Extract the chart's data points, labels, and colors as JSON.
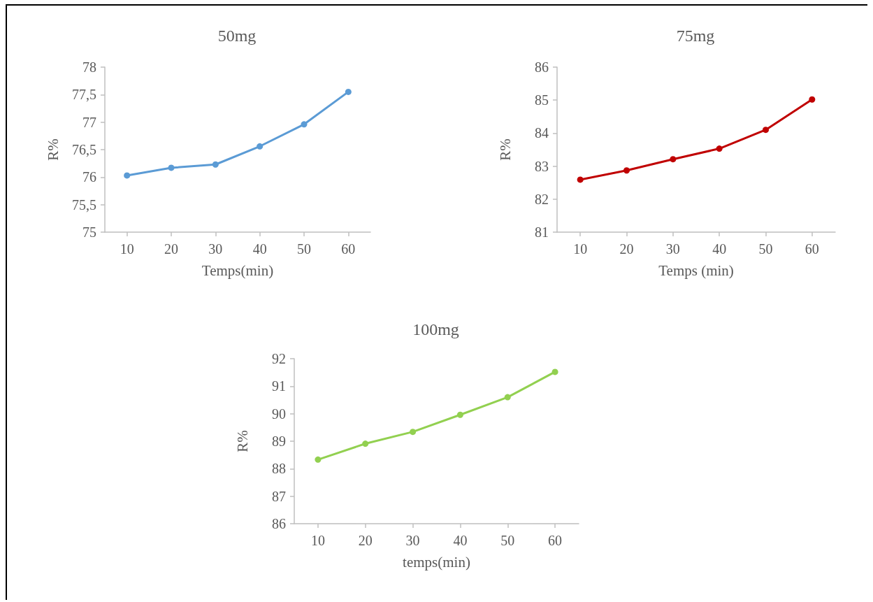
{
  "chart_data": [
    {
      "type": "line",
      "title": "50mg",
      "xlabel": "Temps(min)",
      "ylabel": "R%",
      "x": [
        10,
        20,
        30,
        40,
        50,
        60
      ],
      "series": [
        {
          "color": "#5b9bd5",
          "values": [
            76.03,
            76.17,
            76.23,
            76.56,
            76.96,
            77.55
          ]
        }
      ],
      "xlim": [
        5,
        65
      ],
      "xticks": [
        10,
        20,
        30,
        40,
        50,
        60
      ],
      "ylim": [
        75,
        78
      ],
      "yticks": [
        75,
        {
          "value": 75.5,
          "label": "75,5"
        },
        76,
        {
          "value": 76.5,
          "label": "76,5"
        },
        77,
        {
          "value": 77.5,
          "label": "77,5"
        },
        78
      ],
      "grid": false,
      "marker": "circle",
      "line_style": "solid"
    },
    {
      "type": "line",
      "title": "75mg",
      "xlabel": "Temps (min)",
      "ylabel": "R%",
      "x": [
        10,
        20,
        30,
        40,
        50,
        60
      ],
      "series": [
        {
          "color": "#c00000",
          "values": [
            82.59,
            82.87,
            83.21,
            83.53,
            84.1,
            85.02
          ]
        }
      ],
      "xlim": [
        5,
        65
      ],
      "xticks": [
        10,
        20,
        30,
        40,
        50,
        60
      ],
      "ylim": [
        81,
        86
      ],
      "yticks": [
        81,
        82,
        83,
        84,
        85,
        86
      ],
      "grid": false,
      "marker": "circle",
      "line_style": "solid"
    },
    {
      "type": "line",
      "title": "100mg",
      "xlabel": "temps(min)",
      "ylabel": "R%",
      "x": [
        10,
        20,
        30,
        40,
        50,
        60
      ],
      "series": [
        {
          "color": "#92d050",
          "values": [
            88.33,
            88.91,
            89.34,
            89.96,
            90.6,
            91.52
          ]
        }
      ],
      "xlim": [
        5,
        65
      ],
      "xticks": [
        10,
        20,
        30,
        40,
        50,
        60
      ],
      "ylim": [
        86,
        92
      ],
      "yticks": [
        86,
        87,
        88,
        89,
        90,
        91,
        92
      ],
      "grid": false,
      "marker": "circle",
      "line_style": "solid"
    }
  ]
}
